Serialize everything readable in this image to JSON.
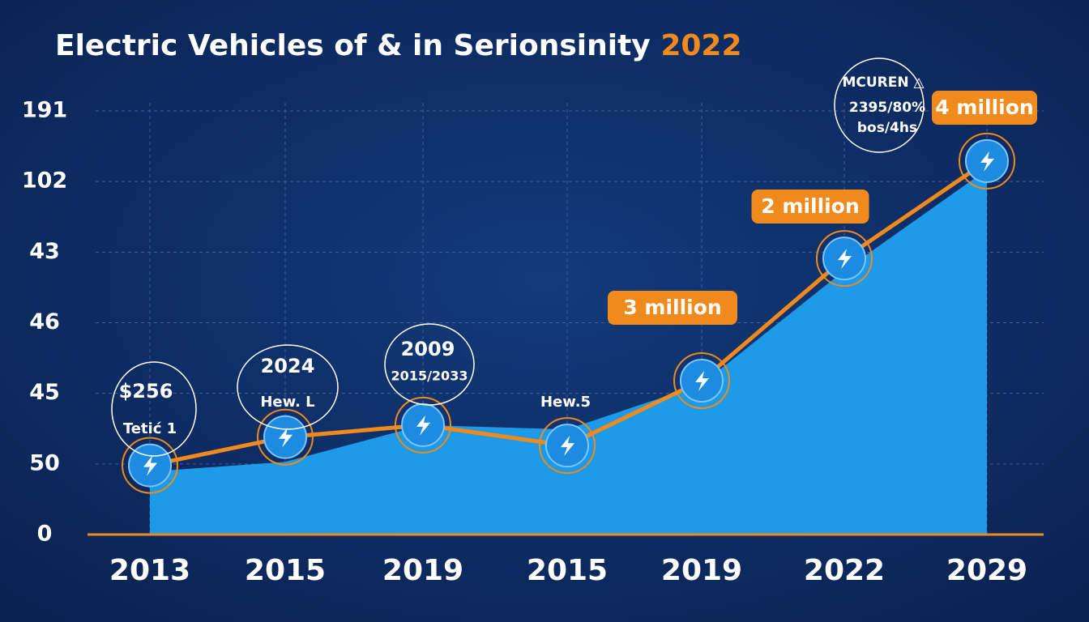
{
  "chart_data": {
    "type": "area-line",
    "title": "Electric Vehicles of & in Serionsinity ",
    "title_highlight": "2022",
    "categories": [
      "2013",
      "2015",
      "2019",
      "2015",
      "2019",
      "2022",
      "2029"
    ],
    "series": [
      {
        "color": "#1e9be8",
        "values": [
          0.89,
          1.03,
          1.55,
          1.49,
          2.13,
          3.74,
          5.17
        ]
      },
      {
        "color": "#f08a1c",
        "values": [
          0.98,
          1.38,
          1.55,
          1.26,
          2.18,
          3.91,
          5.29
        ]
      }
    ],
    "ylim": [
      0,
      6
    ],
    "yticks": [
      {
        "value": 0,
        "label": "0"
      },
      {
        "value": 1,
        "label": "50"
      },
      {
        "value": 2,
        "label": "45"
      },
      {
        "value": 3,
        "label": "46"
      },
      {
        "value": 4,
        "label": "43"
      },
      {
        "value": 5,
        "label": "102"
      },
      {
        "value": 6,
        "label": "191"
      }
    ],
    "grid": true,
    "callouts": [
      "3 million",
      "2 million",
      "4 million"
    ],
    "annotations": [
      "$256",
      "Tetić 1",
      "2024",
      "Hew. L",
      "2009",
      "2015/2033",
      "Hew.5",
      "MCUREN △",
      "2395/80%",
      "bos/4hs"
    ]
  }
}
